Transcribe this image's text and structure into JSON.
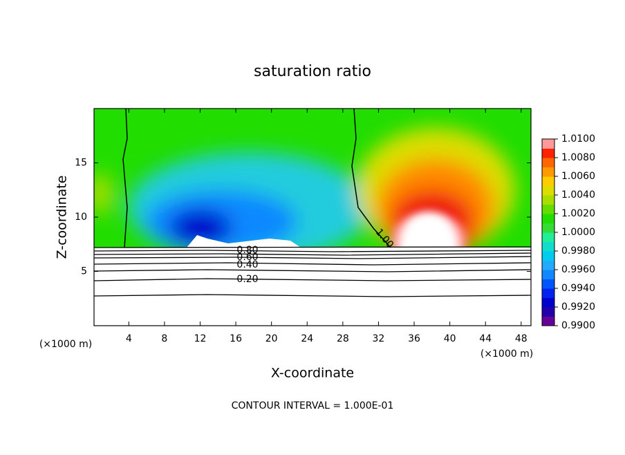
{
  "chart_data": {
    "type": "contour",
    "title": "saturation ratio",
    "x_label": "X-coordinate",
    "y_label": "Z-coordinate",
    "x_unit_left": "(×1000 m)",
    "x_unit_right": "(×1000 m)",
    "footer": "CONTOUR INTERVAL = 1.000E-01",
    "xlim": [
      0.1,
      49.1
    ],
    "ylim": [
      0,
      20
    ],
    "xticks": [
      4,
      8,
      12,
      16,
      20,
      24,
      28,
      32,
      36,
      40,
      44,
      48
    ],
    "yticks": [
      5,
      10,
      15
    ],
    "contour_labels": [
      "0.80",
      "0.60",
      "0.40",
      "0.20",
      "1.00"
    ],
    "colorbar": {
      "lim": [
        0.99,
        1.01
      ],
      "ticks": [
        {
          "value": 0.99,
          "label": "0.9900"
        },
        {
          "value": 0.992,
          "label": "0.9920"
        },
        {
          "value": 0.994,
          "label": "0.9940"
        },
        {
          "value": 0.996,
          "label": "0.9960"
        },
        {
          "value": 0.998,
          "label": "0.9980"
        },
        {
          "value": 1.0,
          "label": "1.0000"
        },
        {
          "value": 1.002,
          "label": "1.0020"
        },
        {
          "value": 1.004,
          "label": "1.0040"
        },
        {
          "value": 1.006,
          "label": "1.0060"
        },
        {
          "value": 1.008,
          "label": "1.0080"
        },
        {
          "value": 1.01,
          "label": "1.0100"
        }
      ],
      "colors": [
        "#660099",
        "#2200aa",
        "#0000cc",
        "#0022ee",
        "#0055ff",
        "#1188ff",
        "#22aaff",
        "#00ccee",
        "#11ddcc",
        "#22ee99",
        "#33dd33",
        "#22dd00",
        "#66dd00",
        "#aadd00",
        "#dddd00",
        "#ffcc00",
        "#ff9900",
        "#ff6600",
        "#ff2200",
        "#ff9999"
      ]
    }
  }
}
